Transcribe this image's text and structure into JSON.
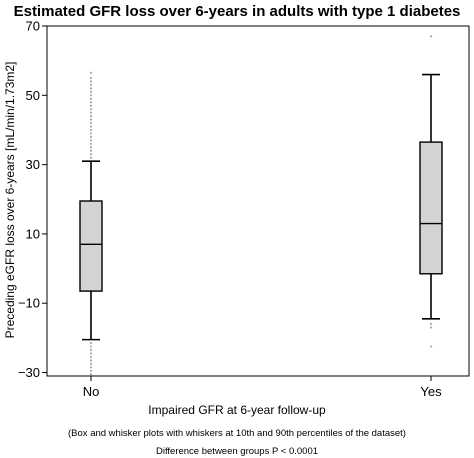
{
  "chart_data": {
    "type": "box",
    "title": "Estimated GFR loss over 6-years in adults with type 1 diabetes",
    "xlabel": "Impaired GFR at 6-year follow-up",
    "ylabel": "Preceding eGFR loss over 6-years [mL/min/1.73m2]",
    "ylim": [
      -31,
      70
    ],
    "yticks": [
      -30,
      -10,
      10,
      30,
      50,
      70
    ],
    "categories": [
      "No",
      "Yes"
    ],
    "boxes": [
      {
        "category": "No",
        "whisker_low": -20.5,
        "q1": -6.5,
        "median": 7,
        "q3": 19.5,
        "whisker_high": 31,
        "outliers_low": [
          -21.5,
          -22.5,
          -23.5,
          -24.5,
          -25.5,
          -26.5,
          -27.5,
          -28.5,
          -29.5,
          -30.5
        ],
        "outliers_high": [
          32,
          33,
          34,
          35,
          36,
          37,
          38,
          39,
          40,
          41,
          42,
          43,
          44,
          45,
          46,
          47,
          48,
          49,
          50,
          51,
          52,
          53,
          54,
          55,
          56.5
        ]
      },
      {
        "category": "Yes",
        "whisker_low": -14.5,
        "q1": -1.5,
        "median": 13,
        "q3": 36.5,
        "whisker_high": 56,
        "outliers_low": [
          -16,
          -17,
          -22.5
        ],
        "outliers_high": [
          67
        ]
      }
    ],
    "notes": [
      "(Box and whisker plots with whiskers at 10th and 90th percentiles of the dataset)",
      "Difference between groups P < 0.0001"
    ],
    "colors": {
      "box_fill": "#d3d3d3",
      "outlier": "#a8a8a8",
      "line": "#000000"
    }
  }
}
